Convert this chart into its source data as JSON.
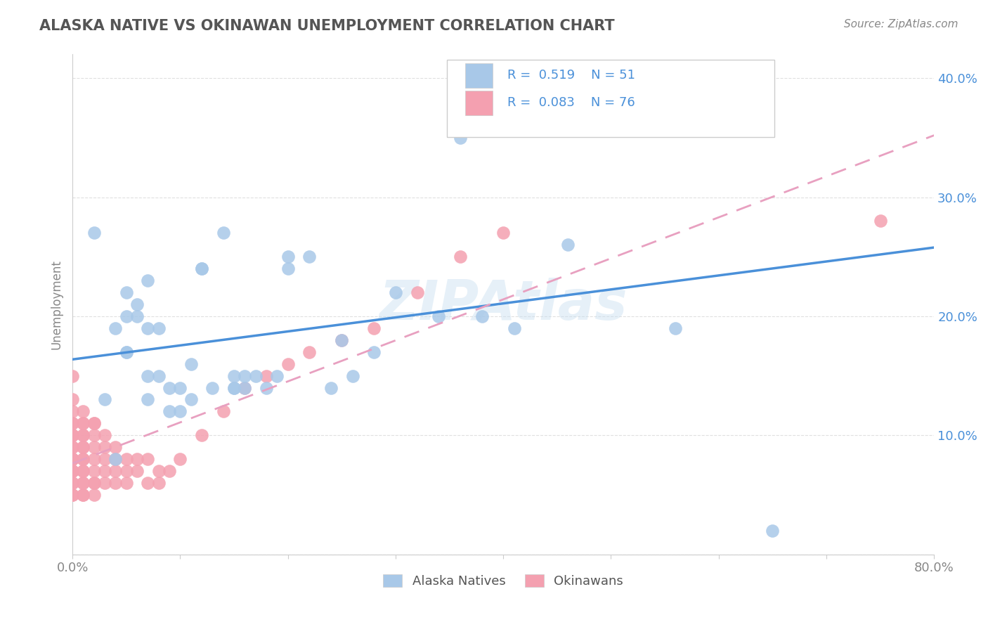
{
  "title": "ALASKA NATIVE VS OKINAWAN UNEMPLOYMENT CORRELATION CHART",
  "source": "Source: ZipAtlas.com",
  "ylabel": "Unemployment",
  "xlim": [
    0.0,
    0.8
  ],
  "ylim": [
    0.0,
    0.42
  ],
  "alaska_R": 0.519,
  "alaska_N": 51,
  "okinawan_R": 0.083,
  "okinawan_N": 76,
  "alaska_color": "#a8c8e8",
  "okinawan_color": "#f4a0b0",
  "alaska_line_color": "#4a90d9",
  "okinawan_line_color": "#e8a0c0",
  "title_color": "#555555",
  "label_color": "#4a90d9",
  "background_color": "#ffffff",
  "grid_color": "#e0e0e0",
  "alaska_x": [
    0.02,
    0.03,
    0.04,
    0.04,
    0.05,
    0.05,
    0.05,
    0.05,
    0.06,
    0.06,
    0.07,
    0.07,
    0.07,
    0.07,
    0.08,
    0.08,
    0.09,
    0.09,
    0.1,
    0.1,
    0.11,
    0.11,
    0.12,
    0.12,
    0.13,
    0.14,
    0.15,
    0.15,
    0.15,
    0.16,
    0.16,
    0.17,
    0.18,
    0.19,
    0.2,
    0.2,
    0.22,
    0.24,
    0.25,
    0.26,
    0.28,
    0.3,
    0.34,
    0.36,
    0.38,
    0.41,
    0.46,
    0.5,
    0.56,
    0.6,
    0.65
  ],
  "alaska_y": [
    0.27,
    0.13,
    0.19,
    0.08,
    0.2,
    0.22,
    0.17,
    0.17,
    0.21,
    0.2,
    0.23,
    0.19,
    0.15,
    0.13,
    0.19,
    0.15,
    0.12,
    0.14,
    0.14,
    0.12,
    0.13,
    0.16,
    0.24,
    0.24,
    0.14,
    0.27,
    0.14,
    0.15,
    0.14,
    0.14,
    0.15,
    0.15,
    0.14,
    0.15,
    0.24,
    0.25,
    0.25,
    0.14,
    0.18,
    0.15,
    0.17,
    0.22,
    0.2,
    0.35,
    0.2,
    0.19,
    0.26,
    0.36,
    0.19,
    0.36,
    0.02
  ],
  "okinawan_x": [
    0.0,
    0.0,
    0.0,
    0.0,
    0.0,
    0.0,
    0.0,
    0.0,
    0.0,
    0.0,
    0.0,
    0.0,
    0.0,
    0.0,
    0.0,
    0.0,
    0.0,
    0.0,
    0.0,
    0.0,
    0.01,
    0.01,
    0.01,
    0.01,
    0.01,
    0.01,
    0.01,
    0.01,
    0.01,
    0.01,
    0.01,
    0.01,
    0.01,
    0.01,
    0.01,
    0.02,
    0.02,
    0.02,
    0.02,
    0.02,
    0.02,
    0.02,
    0.02,
    0.02,
    0.03,
    0.03,
    0.03,
    0.03,
    0.03,
    0.04,
    0.04,
    0.04,
    0.04,
    0.05,
    0.05,
    0.05,
    0.06,
    0.06,
    0.07,
    0.07,
    0.08,
    0.08,
    0.09,
    0.1,
    0.12,
    0.14,
    0.16,
    0.18,
    0.2,
    0.22,
    0.25,
    0.28,
    0.32,
    0.36,
    0.4,
    0.75
  ],
  "okinawan_y": [
    0.05,
    0.05,
    0.06,
    0.06,
    0.07,
    0.07,
    0.07,
    0.08,
    0.08,
    0.08,
    0.09,
    0.09,
    0.1,
    0.1,
    0.1,
    0.11,
    0.11,
    0.12,
    0.13,
    0.15,
    0.05,
    0.05,
    0.06,
    0.06,
    0.07,
    0.07,
    0.08,
    0.08,
    0.09,
    0.09,
    0.1,
    0.1,
    0.11,
    0.11,
    0.12,
    0.05,
    0.06,
    0.06,
    0.07,
    0.08,
    0.09,
    0.1,
    0.11,
    0.11,
    0.06,
    0.07,
    0.08,
    0.09,
    0.1,
    0.06,
    0.07,
    0.08,
    0.09,
    0.06,
    0.07,
    0.08,
    0.07,
    0.08,
    0.06,
    0.08,
    0.06,
    0.07,
    0.07,
    0.08,
    0.1,
    0.12,
    0.14,
    0.15,
    0.16,
    0.17,
    0.18,
    0.19,
    0.22,
    0.25,
    0.27,
    0.28
  ]
}
